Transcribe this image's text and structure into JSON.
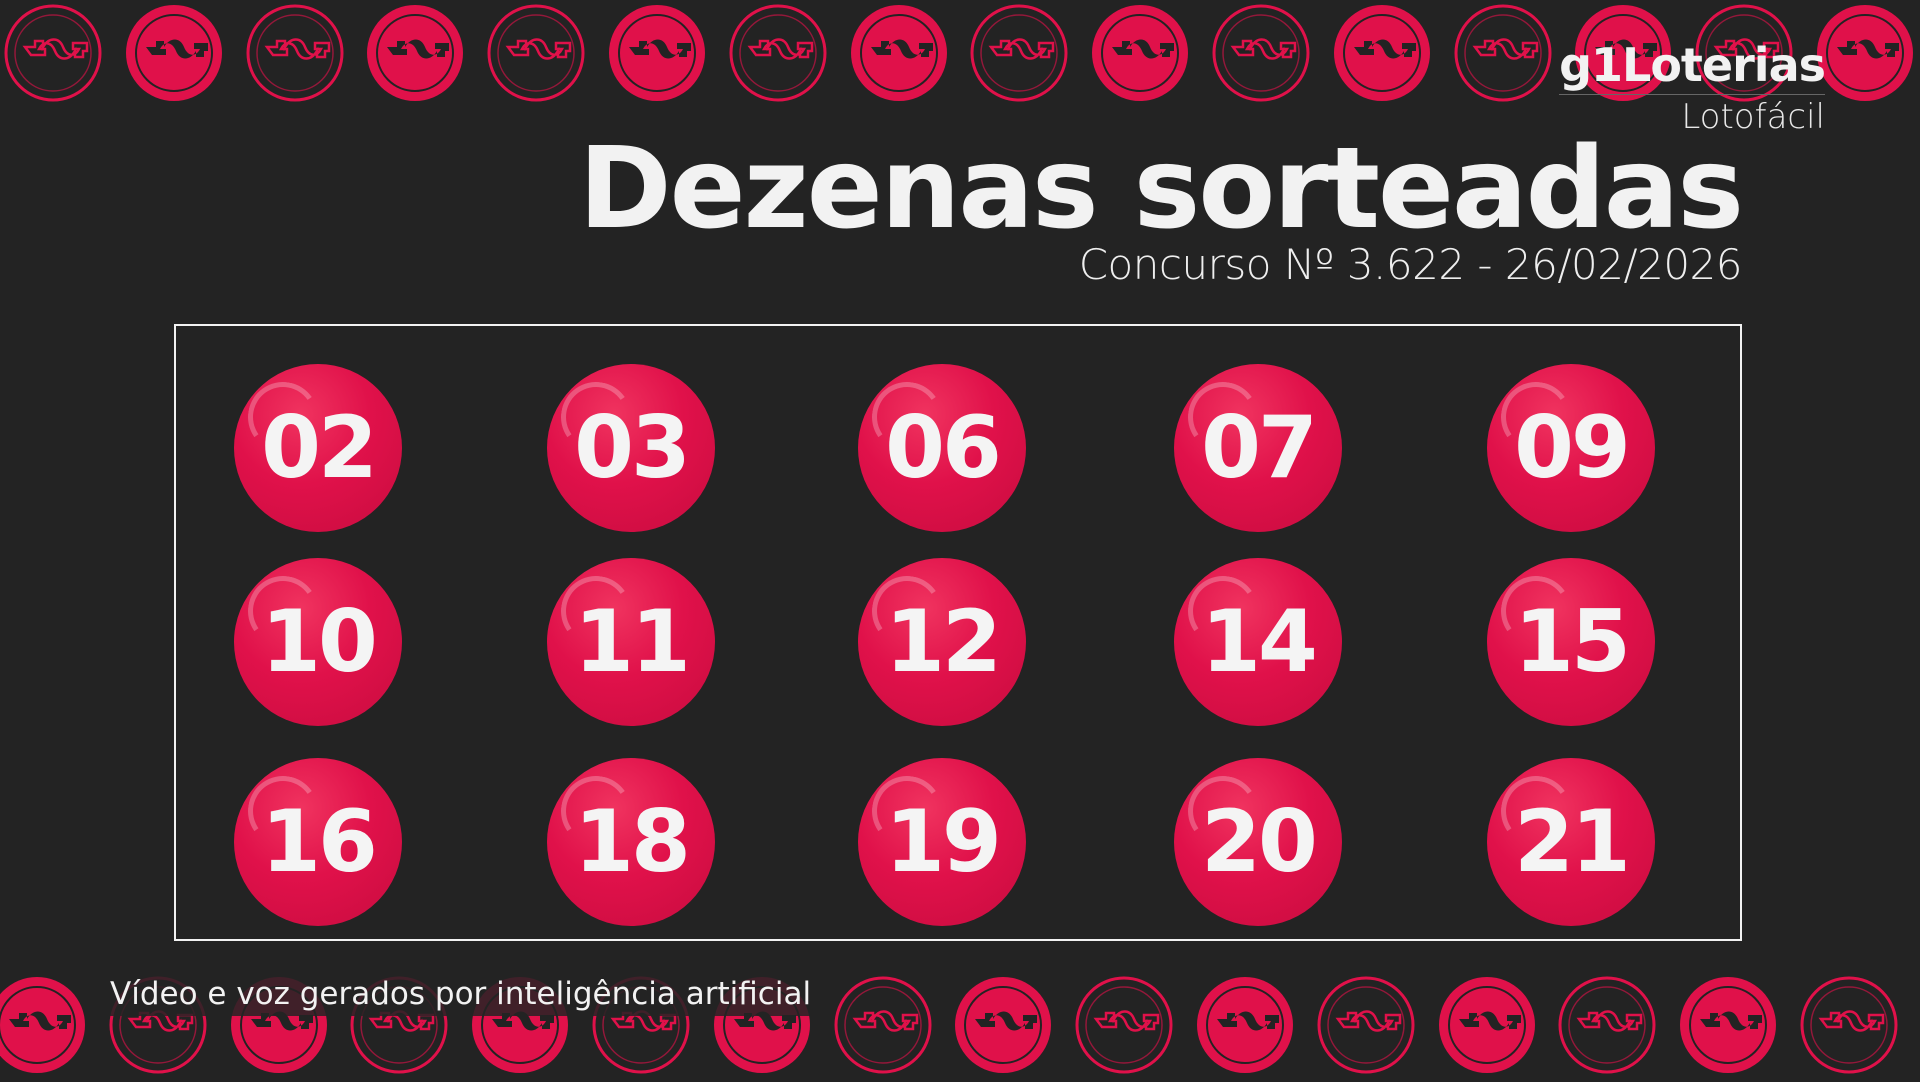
{
  "brand": {
    "logo": "g1Loterias",
    "game": "Lotofácil"
  },
  "header": {
    "title": "Dezenas sorteadas",
    "contest": "Concurso Nº 3.622 - 26/02/2026"
  },
  "numbers": [
    "02",
    "03",
    "06",
    "07",
    "09",
    "10",
    "11",
    "12",
    "14",
    "15",
    "16",
    "18",
    "19",
    "20",
    "21"
  ],
  "caption": "Vídeo e voz gerados por inteligência artificial",
  "colors": {
    "background": "#232323",
    "accent": "#e0114a",
    "text": "#f2f2f2"
  },
  "decor": {
    "icon": "dollar-coin-icon"
  }
}
